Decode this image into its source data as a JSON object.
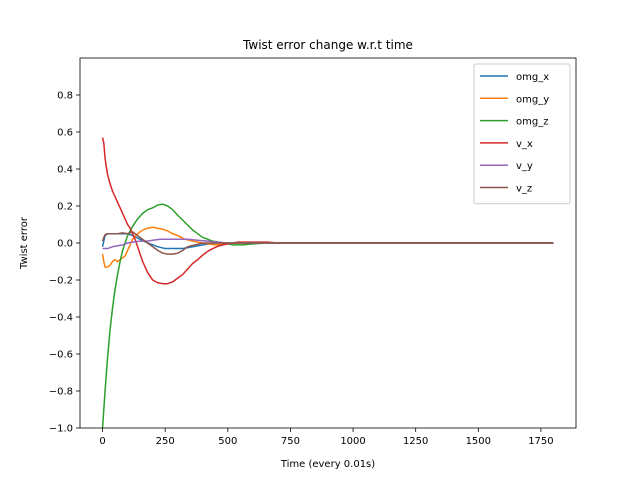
{
  "chart_data": {
    "type": "line",
    "title": "Twist error change w.r.t time",
    "xlabel": "Time (every 0.01s)",
    "ylabel": "Twist error",
    "xlim": [
      -90,
      1890
    ],
    "ylim": [
      -1.0,
      1.0
    ],
    "xticks": [
      0,
      250,
      500,
      750,
      1000,
      1250,
      1500,
      1750
    ],
    "yticks": [
      -1.0,
      -0.8,
      -0.6,
      -0.4,
      -0.2,
      0.0,
      0.2,
      0.4,
      0.6,
      0.8
    ],
    "ytick_labels": [
      "−1.0",
      "−0.8",
      "−0.6",
      "−0.4",
      "−0.2",
      "0.0",
      "0.2",
      "0.4",
      "0.6",
      "0.8"
    ],
    "grid": false,
    "legend_position": "top-right",
    "series": [
      {
        "name": "omg_x",
        "color": "#1f77b4",
        "points": [
          [
            0,
            -0.02
          ],
          [
            10,
            0.04
          ],
          [
            20,
            0.05
          ],
          [
            50,
            0.05
          ],
          [
            80,
            0.05
          ],
          [
            100,
            0.05
          ],
          [
            120,
            0.04
          ],
          [
            150,
            0.02
          ],
          [
            180,
            0.0
          ],
          [
            220,
            -0.02
          ],
          [
            250,
            -0.03
          ],
          [
            280,
            -0.03
          ],
          [
            320,
            -0.03
          ],
          [
            360,
            -0.02
          ],
          [
            400,
            -0.01
          ],
          [
            450,
            0.0
          ],
          [
            500,
            0.0
          ],
          [
            600,
            0.0
          ],
          [
            1000,
            0.0
          ],
          [
            1500,
            0.0
          ],
          [
            1800,
            0.0
          ]
        ]
      },
      {
        "name": "omg_y",
        "color": "#ff7f0e",
        "points": [
          [
            0,
            -0.06
          ],
          [
            5,
            -0.1
          ],
          [
            10,
            -0.13
          ],
          [
            20,
            -0.13
          ],
          [
            30,
            -0.12
          ],
          [
            40,
            -0.1
          ],
          [
            50,
            -0.09
          ],
          [
            60,
            -0.1
          ],
          [
            70,
            -0.09
          ],
          [
            80,
            -0.08
          ],
          [
            90,
            -0.07
          ],
          [
            100,
            -0.04
          ],
          [
            110,
            -0.01
          ],
          [
            120,
            0.02
          ],
          [
            140,
            0.05
          ],
          [
            160,
            0.07
          ],
          [
            180,
            0.08
          ],
          [
            200,
            0.085
          ],
          [
            220,
            0.08
          ],
          [
            240,
            0.075
          ],
          [
            260,
            0.065
          ],
          [
            280,
            0.05
          ],
          [
            300,
            0.04
          ],
          [
            330,
            0.02
          ],
          [
            360,
            0.01
          ],
          [
            400,
            0.0
          ],
          [
            450,
            -0.01
          ],
          [
            500,
            -0.005
          ],
          [
            560,
            0.0
          ],
          [
            700,
            0.0
          ],
          [
            1000,
            0.0
          ],
          [
            1500,
            0.0
          ],
          [
            1800,
            0.0
          ]
        ]
      },
      {
        "name": "omg_z",
        "color": "#2ca02c",
        "points": [
          [
            0,
            -1.0
          ],
          [
            5,
            -0.9
          ],
          [
            10,
            -0.8
          ],
          [
            20,
            -0.62
          ],
          [
            30,
            -0.47
          ],
          [
            40,
            -0.35
          ],
          [
            50,
            -0.25
          ],
          [
            60,
            -0.17
          ],
          [
            70,
            -0.1
          ],
          [
            80,
            -0.04
          ],
          [
            90,
            0.0
          ],
          [
            100,
            0.04
          ],
          [
            120,
            0.09
          ],
          [
            140,
            0.13
          ],
          [
            160,
            0.16
          ],
          [
            180,
            0.18
          ],
          [
            200,
            0.19
          ],
          [
            220,
            0.205
          ],
          [
            240,
            0.21
          ],
          [
            260,
            0.2
          ],
          [
            280,
            0.18
          ],
          [
            300,
            0.15
          ],
          [
            330,
            0.11
          ],
          [
            360,
            0.07
          ],
          [
            400,
            0.03
          ],
          [
            440,
            0.01
          ],
          [
            480,
            0.0
          ],
          [
            520,
            -0.01
          ],
          [
            560,
            -0.01
          ],
          [
            600,
            -0.005
          ],
          [
            650,
            0.0
          ],
          [
            700,
            0.0
          ],
          [
            1000,
            0.0
          ],
          [
            1500,
            0.0
          ],
          [
            1800,
            0.0
          ]
        ]
      },
      {
        "name": "v_x",
        "color": "#d62728",
        "points": [
          [
            0,
            0.57
          ],
          [
            5,
            0.54
          ],
          [
            10,
            0.46
          ],
          [
            15,
            0.41
          ],
          [
            20,
            0.37
          ],
          [
            30,
            0.32
          ],
          [
            40,
            0.28
          ],
          [
            50,
            0.25
          ],
          [
            60,
            0.22
          ],
          [
            70,
            0.19
          ],
          [
            80,
            0.16
          ],
          [
            90,
            0.13
          ],
          [
            100,
            0.1
          ],
          [
            110,
            0.08
          ],
          [
            120,
            0.05
          ],
          [
            130,
            0.02
          ],
          [
            140,
            -0.02
          ],
          [
            150,
            -0.06
          ],
          [
            160,
            -0.1
          ],
          [
            170,
            -0.13
          ],
          [
            180,
            -0.16
          ],
          [
            190,
            -0.18
          ],
          [
            200,
            -0.2
          ],
          [
            220,
            -0.215
          ],
          [
            240,
            -0.22
          ],
          [
            260,
            -0.22
          ],
          [
            280,
            -0.21
          ],
          [
            300,
            -0.19
          ],
          [
            320,
            -0.17
          ],
          [
            340,
            -0.14
          ],
          [
            360,
            -0.11
          ],
          [
            380,
            -0.09
          ],
          [
            400,
            -0.065
          ],
          [
            420,
            -0.045
          ],
          [
            440,
            -0.03
          ],
          [
            460,
            -0.018
          ],
          [
            480,
            -0.01
          ],
          [
            500,
            -0.005
          ],
          [
            520,
            0.0
          ],
          [
            540,
            0.005
          ],
          [
            580,
            0.005
          ],
          [
            620,
            0.005
          ],
          [
            660,
            0.005
          ],
          [
            700,
            0.0
          ],
          [
            1000,
            0.0
          ],
          [
            1500,
            0.0
          ],
          [
            1800,
            0.0
          ]
        ]
      },
      {
        "name": "v_y",
        "color": "#9467bd",
        "points": [
          [
            0,
            -0.03
          ],
          [
            20,
            -0.03
          ],
          [
            40,
            -0.02
          ],
          [
            60,
            -0.015
          ],
          [
            80,
            -0.01
          ],
          [
            100,
            0.0
          ],
          [
            120,
            0.005
          ],
          [
            150,
            0.01
          ],
          [
            180,
            0.01
          ],
          [
            200,
            0.015
          ],
          [
            230,
            0.02
          ],
          [
            260,
            0.02
          ],
          [
            300,
            0.02
          ],
          [
            340,
            0.02
          ],
          [
            380,
            0.015
          ],
          [
            420,
            0.01
          ],
          [
            460,
            0.005
          ],
          [
            500,
            0.0
          ],
          [
            600,
            0.0
          ],
          [
            1000,
            0.0
          ],
          [
            1500,
            0.0
          ],
          [
            1800,
            0.0
          ]
        ]
      },
      {
        "name": "v_z",
        "color": "#8c564b",
        "points": [
          [
            0,
            0.01
          ],
          [
            5,
            0.03
          ],
          [
            10,
            0.045
          ],
          [
            20,
            0.05
          ],
          [
            40,
            0.05
          ],
          [
            60,
            0.05
          ],
          [
            80,
            0.055
          ],
          [
            100,
            0.05
          ],
          [
            120,
            0.06
          ],
          [
            140,
            0.04
          ],
          [
            160,
            0.02
          ],
          [
            180,
            0.0
          ],
          [
            200,
            -0.02
          ],
          [
            220,
            -0.04
          ],
          [
            240,
            -0.055
          ],
          [
            260,
            -0.06
          ],
          [
            280,
            -0.06
          ],
          [
            300,
            -0.055
          ],
          [
            320,
            -0.04
          ],
          [
            340,
            -0.02
          ],
          [
            370,
            -0.01
          ],
          [
            400,
            0.0
          ],
          [
            450,
            0.0
          ],
          [
            500,
            0.0
          ],
          [
            700,
            0.0
          ],
          [
            1000,
            0.0
          ],
          [
            1500,
            0.0
          ],
          [
            1800,
            0.0
          ]
        ]
      }
    ]
  }
}
